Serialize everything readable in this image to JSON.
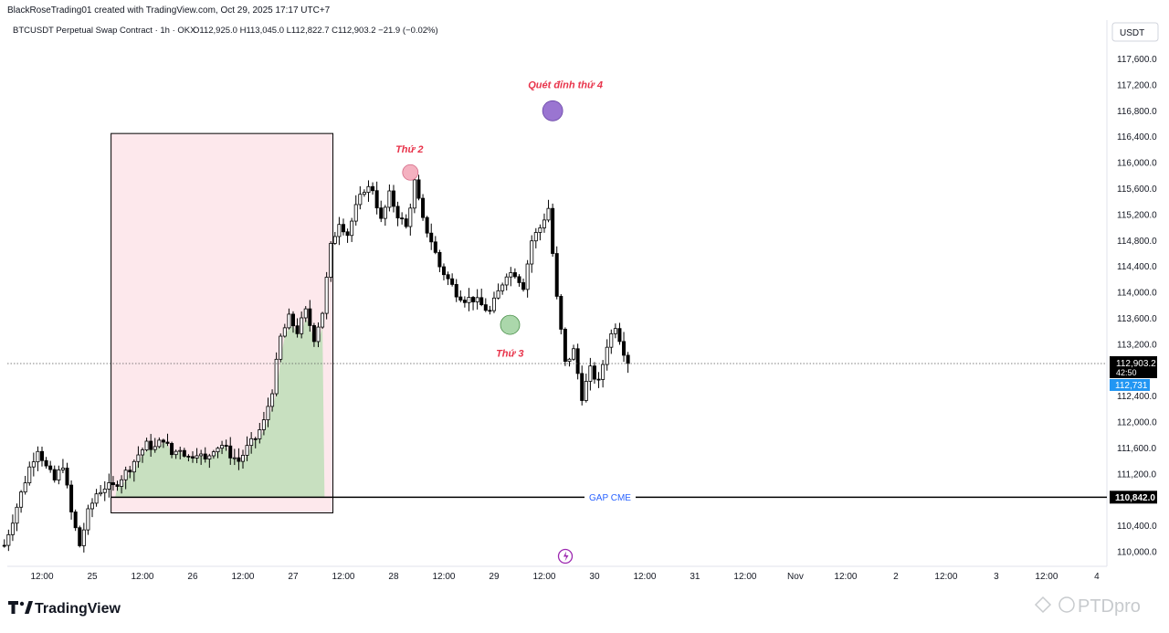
{
  "header": {
    "credit": "BlackRoseTrading01 created with TradingView.com, Oct 29, 2025 17:17 UTC+7",
    "symbol_line": "BTCUSDT Perpetual Swap Contract · 1h · OKX",
    "ohlc": "O112,925.0  H113,045.0  L112,822.7  C112,903.2  −21.9 (−0.02%)"
  },
  "price_axis": {
    "currency": "USDT",
    "current_price": "112,903.2",
    "countdown": "42:50",
    "blue_label": "112,731",
    "gap_label": "110,842.0"
  },
  "branding": {
    "logo_text": "TradingView",
    "watermark": "PTDpro"
  },
  "colors": {
    "up_body": "#ffffff",
    "down_body": "#000000",
    "range_box": "#fde8ec",
    "green_fill": "#c8e0c0",
    "annotation": "#e8334a",
    "gap_text": "#2962ff",
    "blue_label": "#2196f3"
  },
  "chart_data": {
    "type": "candlestick",
    "interval": "1h",
    "ylim": [
      109800,
      118000
    ],
    "y_ticks": [
      110000,
      110400,
      111200,
      111600,
      112000,
      112400,
      113200,
      113600,
      114000,
      114400,
      114800,
      115200,
      115600,
      116000,
      116400,
      116800,
      117200,
      117600
    ],
    "y_tick_labels": [
      "110,000.0",
      "110,400.0",
      "111,200.0",
      "111,600.0",
      "112,000.0",
      "112,400.0",
      "113,200.0",
      "113,600.0",
      "114,000.0",
      "114,400.0",
      "114,800.0",
      "115,200.0",
      "115,600.0",
      "116,000.0",
      "116,400.0",
      "116,800.0",
      "117,200.0",
      "117,600.0"
    ],
    "x_ticks": [
      "12:00",
      "25",
      "12:00",
      "26",
      "12:00",
      "27",
      "12:00",
      "28",
      "12:00",
      "29",
      "12:00",
      "30",
      "12:00",
      "31",
      "12:00",
      "Nov",
      "12:00",
      "2",
      "12:00",
      "3",
      "12:00",
      "4"
    ],
    "x_tick_start_hours": -12,
    "gap_cme_price": 110842,
    "current_price": 112903.2,
    "candle_close_path": [
      [
        -21,
        110100
      ],
      [
        -19,
        110500
      ],
      [
        -17,
        110900
      ],
      [
        -15,
        111300
      ],
      [
        -13,
        111600
      ],
      [
        -11,
        111300
      ],
      [
        -9,
        111100
      ],
      [
        -7,
        111350
      ],
      [
        -5,
        110600
      ],
      [
        -3,
        110100
      ],
      [
        -1,
        110600
      ],
      [
        1,
        110900
      ],
      [
        3,
        111000
      ],
      [
        5,
        111000
      ],
      [
        7,
        111150
      ],
      [
        9,
        111300
      ],
      [
        11,
        111500
      ],
      [
        13,
        111650
      ],
      [
        15,
        111600
      ],
      [
        17,
        111750
      ],
      [
        19,
        111500
      ],
      [
        21,
        111600
      ],
      [
        23,
        111450
      ],
      [
        25,
        111550
      ],
      [
        27,
        111400
      ],
      [
        29,
        111600
      ],
      [
        31,
        111650
      ],
      [
        33,
        111500
      ],
      [
        35,
        111400
      ],
      [
        37,
        111600
      ],
      [
        39,
        111750
      ],
      [
        41,
        112000
      ],
      [
        43,
        112500
      ],
      [
        45,
        113300
      ],
      [
        47,
        113600
      ],
      [
        49,
        113400
      ],
      [
        51,
        113700
      ],
      [
        53,
        113300
      ],
      [
        55,
        113700
      ],
      [
        57,
        114700
      ],
      [
        59,
        115100
      ],
      [
        61,
        114900
      ],
      [
        63,
        115300
      ],
      [
        65,
        115600
      ],
      [
        67,
        115600
      ],
      [
        69,
        115100
      ],
      [
        71,
        115500
      ],
      [
        73,
        115200
      ],
      [
        75,
        115000
      ],
      [
        77,
        115700
      ],
      [
        79,
        115100
      ],
      [
        81,
        114800
      ],
      [
        83,
        114400
      ],
      [
        85,
        114200
      ],
      [
        87,
        114000
      ],
      [
        89,
        113900
      ],
      [
        91,
        113900
      ],
      [
        93,
        113800
      ],
      [
        95,
        113700
      ],
      [
        97,
        114000
      ],
      [
        99,
        114300
      ],
      [
        101,
        114300
      ],
      [
        103,
        114100
      ],
      [
        105,
        114800
      ],
      [
        107,
        115000
      ],
      [
        109,
        115300
      ],
      [
        111,
        113900
      ],
      [
        113,
        112900
      ],
      [
        115,
        113100
      ],
      [
        117,
        112400
      ],
      [
        119,
        112800
      ],
      [
        121,
        112600
      ],
      [
        123,
        113200
      ],
      [
        125,
        113500
      ],
      [
        127,
        113100
      ],
      [
        128,
        112903
      ]
    ],
    "annotations": {
      "sweep_4": {
        "label": "Quét đỉnh thứ 4",
        "hour": 110,
        "price": 116800
      },
      "top_2": {
        "label": "Thứ 2",
        "hour": 76,
        "price": 115850
      },
      "bottom_3": {
        "label": "Thứ 3",
        "hour": 100,
        "price": 113500
      }
    },
    "range_box": {
      "from_hour": 4.5,
      "to_hour": 57.5,
      "low": 110600,
      "high": 116450
    },
    "green_area": {
      "from_hour": 5.5,
      "to_hour": 55.5,
      "base": 110842
    },
    "gap_text": "GAP CME"
  }
}
